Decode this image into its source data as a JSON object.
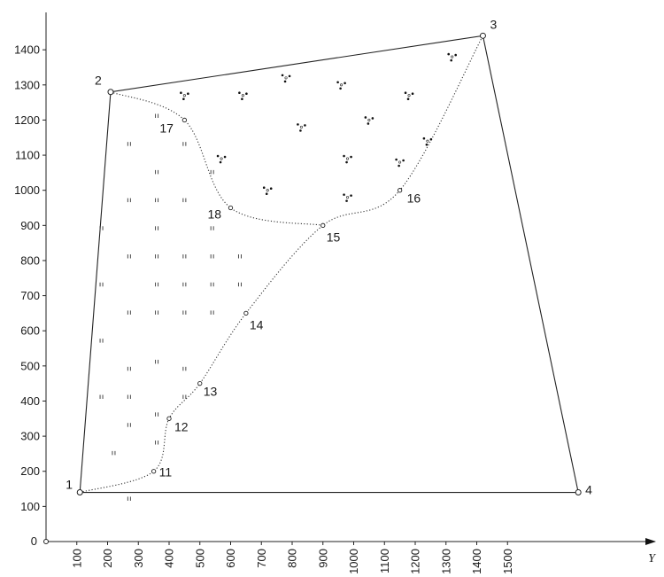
{
  "chart_data": {
    "type": "diagram",
    "x_axis_label": "Y",
    "y_origin_label": "0",
    "y_ticks": [
      "100",
      "200",
      "300",
      "400",
      "500",
      "600",
      "700",
      "800",
      "900",
      "1000",
      "1100",
      "1200",
      "1300",
      "1400"
    ],
    "x_ticks": [
      "100",
      "200",
      "300",
      "400",
      "500",
      "600",
      "700",
      "800",
      "900",
      "1000",
      "1100",
      "1200",
      "1300",
      "1400",
      "1500"
    ],
    "corners": [
      {
        "id": "1",
        "x": 110,
        "y": 140
      },
      {
        "id": "2",
        "x": 210,
        "y": 1280
      },
      {
        "id": "3",
        "x": 1420,
        "y": 1440
      },
      {
        "id": "4",
        "x": 1730,
        "y": 140
      }
    ],
    "boundary_points": [
      {
        "id": "11",
        "x": 350,
        "y": 200
      },
      {
        "id": "12",
        "x": 400,
        "y": 350
      },
      {
        "id": "13",
        "x": 500,
        "y": 450
      },
      {
        "id": "14",
        "x": 650,
        "y": 650
      },
      {
        "id": "15",
        "x": 900,
        "y": 900
      },
      {
        "id": "16",
        "x": 1150,
        "y": 1000
      },
      {
        "id": "17",
        "x": 450,
        "y": 1200
      },
      {
        "id": "18",
        "x": 600,
        "y": 950
      }
    ],
    "curve_lower": [
      "1",
      "11",
      "12",
      "13",
      "14",
      "15",
      "16",
      "3"
    ],
    "curve_upper": [
      "2",
      "17",
      "18",
      "15"
    ],
    "grass_marks": [
      [
        270,
        120
      ],
      [
        220,
        250
      ],
      [
        360,
        280
      ],
      [
        270,
        330
      ],
      [
        360,
        360
      ],
      [
        180,
        410
      ],
      [
        270,
        410
      ],
      [
        450,
        410
      ],
      [
        180,
        570
      ],
      [
        270,
        490
      ],
      [
        360,
        510
      ],
      [
        450,
        490
      ],
      [
        270,
        650
      ],
      [
        360,
        650
      ],
      [
        450,
        650
      ],
      [
        540,
        650
      ],
      [
        180,
        730
      ],
      [
        360,
        730
      ],
      [
        450,
        730
      ],
      [
        540,
        730
      ],
      [
        630,
        730
      ],
      [
        270,
        810
      ],
      [
        360,
        810
      ],
      [
        450,
        810
      ],
      [
        540,
        810
      ],
      [
        630,
        810
      ],
      [
        180,
        890
      ],
      [
        360,
        890
      ],
      [
        540,
        890
      ],
      [
        270,
        970
      ],
      [
        360,
        970
      ],
      [
        450,
        970
      ],
      [
        360,
        1050
      ],
      [
        540,
        1050
      ],
      [
        270,
        1130
      ],
      [
        450,
        1130
      ],
      [
        360,
        1210
      ]
    ],
    "tree_marks": [
      [
        450,
        1270
      ],
      [
        640,
        1270
      ],
      [
        780,
        1320
      ],
      [
        960,
        1300
      ],
      [
        1180,
        1270
      ],
      [
        1320,
        1380
      ],
      [
        830,
        1180
      ],
      [
        1050,
        1200
      ],
      [
        1240,
        1140
      ],
      [
        570,
        1090
      ],
      [
        980,
        1090
      ],
      [
        1150,
        1080
      ],
      [
        720,
        1000
      ],
      [
        980,
        980
      ]
    ]
  }
}
